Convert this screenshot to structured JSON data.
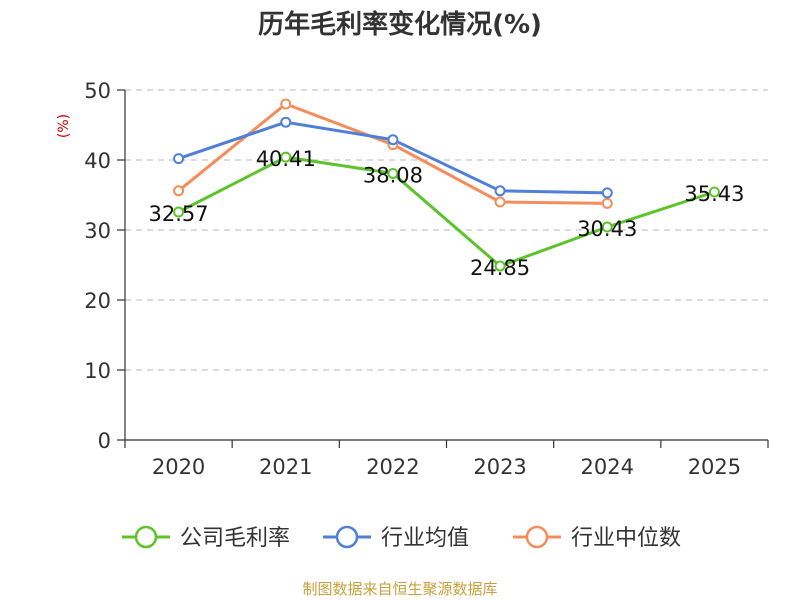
{
  "title": "历年毛利率变化情况(%)",
  "footer": "制图数据来自恒生聚源数据库",
  "chart_data": {
    "type": "line",
    "title": "历年毛利率变化情况(%)",
    "ylabel": "(%)",
    "xlabel": "",
    "categories": [
      "2020",
      "2021",
      "2022",
      "2023",
      "2024",
      "2025"
    ],
    "ylim": [
      0,
      50
    ],
    "yticks": [
      0,
      10,
      20,
      30,
      40,
      50
    ],
    "grid": true,
    "legend_position": "bottom",
    "series": [
      {
        "name": "公司毛利率",
        "color": "#5cc42a",
        "values": [
          32.57,
          40.41,
          38.08,
          24.85,
          30.43,
          35.43
        ],
        "labels": [
          "32.57",
          "40.41",
          "38.08",
          "24.85",
          "30.43",
          "35.43"
        ]
      },
      {
        "name": "行业均值",
        "color": "#4f7fd8",
        "values": [
          40.2,
          45.4,
          42.9,
          35.6,
          35.3,
          null
        ]
      },
      {
        "name": "行业中位数",
        "color": "#f58d5b",
        "values": [
          35.6,
          48.0,
          42.2,
          34.0,
          33.8,
          null
        ]
      }
    ]
  }
}
